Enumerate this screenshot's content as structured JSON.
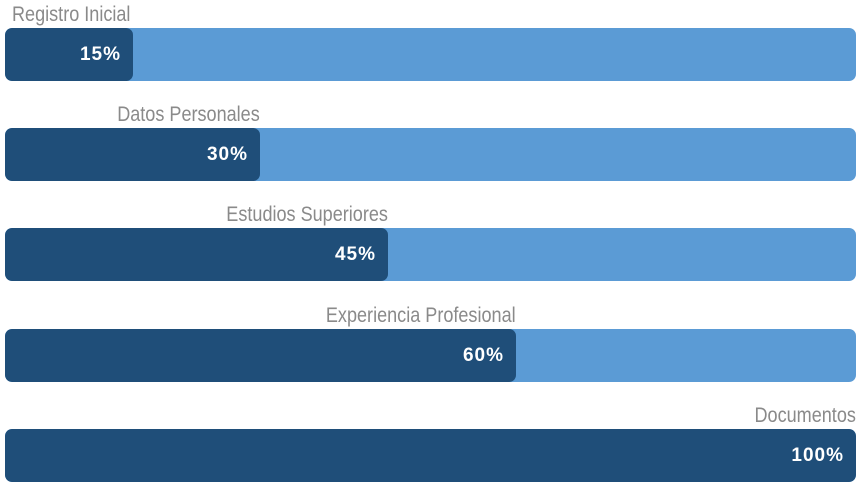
{
  "colors": {
    "track": "#5b9bd5",
    "fill": "#1f4e79",
    "label": "#8a8a8a",
    "value_text": "#ffffff"
  },
  "steps": [
    {
      "label": "Registro Inicial",
      "value_text": "15%",
      "progress": 0.15
    },
    {
      "label": "Datos Personales",
      "value_text": "30%",
      "progress": 0.3
    },
    {
      "label": "Estudios Superiores",
      "value_text": "45%",
      "progress": 0.45
    },
    {
      "label": "Experiencia Profesional",
      "value_text": "60%",
      "progress": 0.6
    },
    {
      "label": "Documentos",
      "value_text": "100%",
      "progress": 1.0
    }
  ]
}
